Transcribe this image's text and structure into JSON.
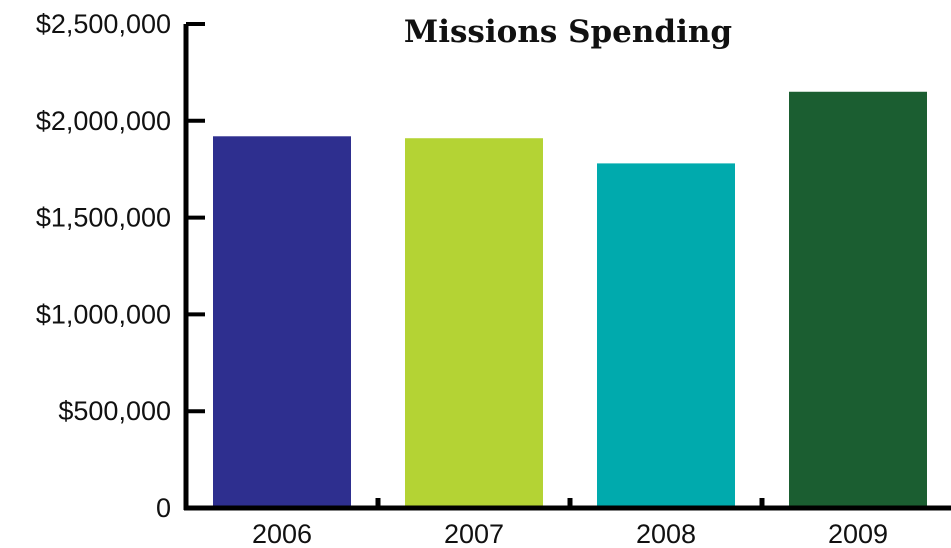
{
  "chart_data": {
    "type": "bar",
    "title": "Missions Spending",
    "xlabel": "",
    "ylabel": "",
    "categories": [
      "2006",
      "2007",
      "2008",
      "2009"
    ],
    "values": [
      1920000,
      1910000,
      1780000,
      2150000
    ],
    "colors": [
      "#2e2f8f",
      "#b4d334",
      "#00aaad",
      "#1b5e31"
    ],
    "ylim": [
      0,
      2500000
    ],
    "yticks": [
      0,
      500000,
      1000000,
      1500000,
      2000000,
      2500000
    ],
    "ytick_labels": [
      "0",
      "$500,000",
      "$1,000,000",
      "$1,500,000",
      "$2,000,000",
      "$2,500,000"
    ],
    "grid": false,
    "legend": "none"
  }
}
